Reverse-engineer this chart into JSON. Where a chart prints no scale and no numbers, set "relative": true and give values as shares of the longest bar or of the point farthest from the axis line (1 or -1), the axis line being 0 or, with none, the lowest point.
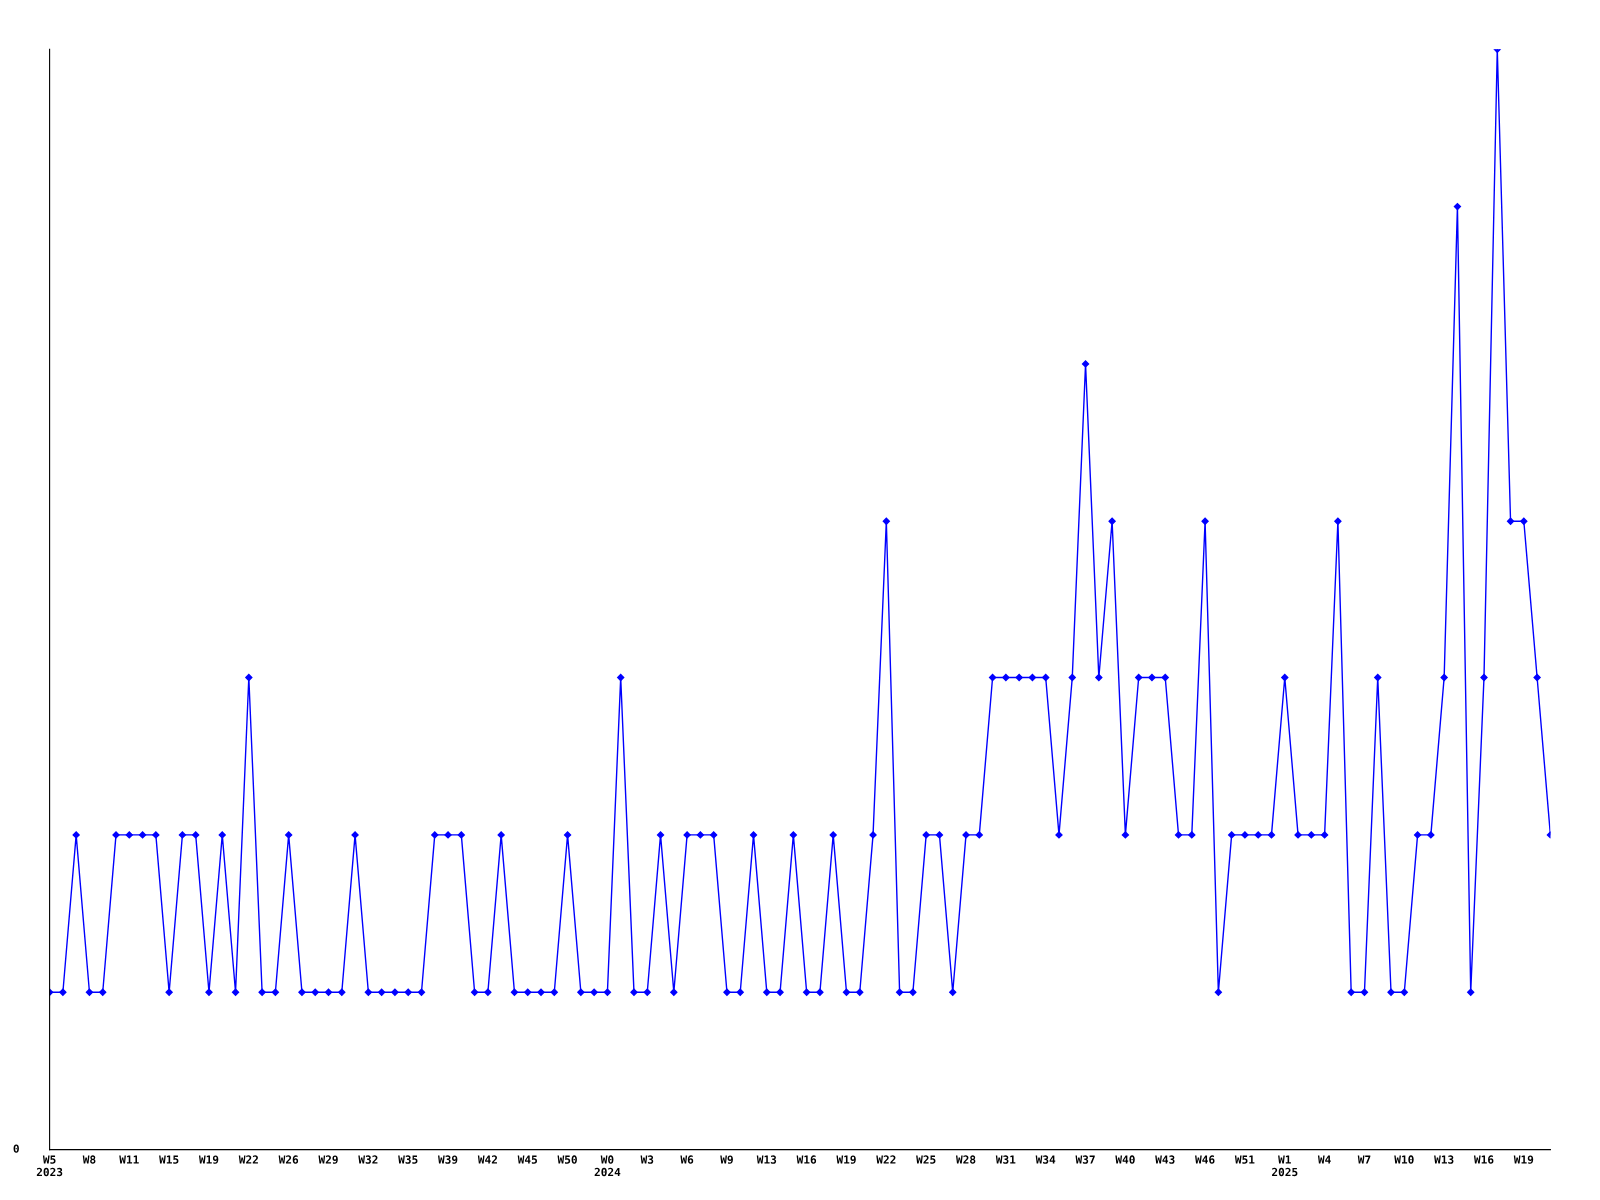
{
  "chart_data": {
    "type": "line",
    "relative": true,
    "marker": "diamond",
    "line_style": "solid",
    "grid": false,
    "annotations": [
      "0"
    ],
    "categories": [
      "W5\n2023",
      null,
      null,
      "W8",
      null,
      null,
      "W11",
      null,
      null,
      "W15",
      null,
      null,
      "W19",
      null,
      null,
      "W22",
      null,
      null,
      "W26",
      null,
      null,
      "W29",
      null,
      null,
      "W32",
      null,
      null,
      "W35",
      null,
      null,
      "W39",
      null,
      null,
      "W42",
      null,
      null,
      "W45",
      null,
      null,
      "W50",
      null,
      null,
      "W0\n2024",
      null,
      null,
      "W3",
      null,
      null,
      "W6",
      null,
      null,
      "W9",
      null,
      null,
      "W13",
      null,
      null,
      "W16",
      null,
      null,
      "W19",
      null,
      null,
      "W22",
      null,
      null,
      "W25",
      null,
      null,
      "W28",
      null,
      null,
      "W31",
      null,
      null,
      "W34",
      null,
      null,
      "W37",
      null,
      null,
      "W40",
      null,
      null,
      "W43",
      null,
      null,
      "W46",
      null,
      null,
      "W51",
      null,
      null,
      "W1\n2025",
      null,
      null,
      "W4",
      null,
      null,
      "W7",
      null,
      null,
      "W10",
      null,
      null,
      "W13",
      null,
      null,
      "W16",
      null,
      null,
      "W19",
      null,
      null
    ],
    "series": [
      {
        "color": "#0000ff",
        "values": [
          0.143,
          0.143,
          0.286,
          0.143,
          0.143,
          0.286,
          0.286,
          0.286,
          0.286,
          0.143,
          0.286,
          0.286,
          0.143,
          0.286,
          0.143,
          0.429,
          0.143,
          0.143,
          0.286,
          0.143,
          0.143,
          0.143,
          0.143,
          0.286,
          0.143,
          0.143,
          0.143,
          0.143,
          0.143,
          0.286,
          0.286,
          0.286,
          0.143,
          0.143,
          0.286,
          0.143,
          0.143,
          0.143,
          0.143,
          0.286,
          0.143,
          0.143,
          0.143,
          0.429,
          0.143,
          0.143,
          0.286,
          0.143,
          0.286,
          0.286,
          0.286,
          0.143,
          0.143,
          0.286,
          0.143,
          0.143,
          0.286,
          0.143,
          0.143,
          0.286,
          0.143,
          0.143,
          0.286,
          0.571,
          0.143,
          0.143,
          0.286,
          0.286,
          0.143,
          0.286,
          0.286,
          0.429,
          0.429,
          0.429,
          0.429,
          0.429,
          0.286,
          0.429,
          0.714,
          0.429,
          0.571,
          0.286,
          0.429,
          0.429,
          0.429,
          0.286,
          0.286,
          0.571,
          0.143,
          0.286,
          0.286,
          0.286,
          0.286,
          0.429,
          0.286,
          0.286,
          0.286,
          0.571,
          0.143,
          0.143,
          0.429,
          0.143,
          0.143,
          0.286,
          0.286,
          0.429,
          0.857,
          0.143,
          0.429,
          1,
          0.571,
          0.571,
          0.429,
          0.286
        ]
      }
    ]
  }
}
